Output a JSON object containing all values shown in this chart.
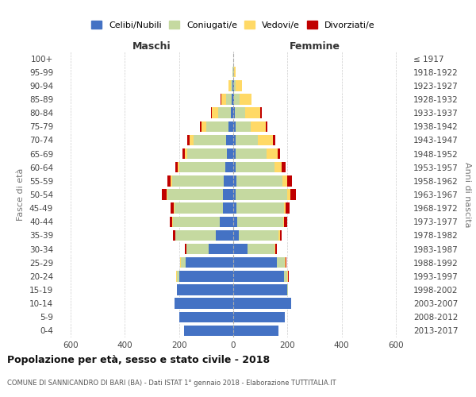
{
  "age_groups": [
    "100+",
    "95-99",
    "90-94",
    "85-89",
    "80-84",
    "75-79",
    "70-74",
    "65-69",
    "60-64",
    "55-59",
    "50-54",
    "45-49",
    "40-44",
    "35-39",
    "30-34",
    "25-29",
    "20-24",
    "15-19",
    "10-14",
    "5-9",
    "0-4"
  ],
  "birth_years": [
    "≤ 1917",
    "1918-1922",
    "1923-1927",
    "1928-1932",
    "1933-1937",
    "1938-1942",
    "1943-1947",
    "1948-1952",
    "1953-1957",
    "1958-1962",
    "1963-1967",
    "1968-1972",
    "1973-1977",
    "1978-1982",
    "1983-1987",
    "1988-1992",
    "1993-1997",
    "1998-2002",
    "2003-2007",
    "2008-2012",
    "2013-2017"
  ],
  "colors": {
    "celibe": "#4472C4",
    "coniugato": "#C5D9A0",
    "vedovo": "#FFD966",
    "divorziato": "#C00000"
  },
  "maschi": {
    "celibe": [
      1,
      1,
      2,
      5,
      8,
      18,
      25,
      22,
      28,
      35,
      38,
      38,
      50,
      65,
      92,
      175,
      198,
      208,
      218,
      198,
      182
    ],
    "coniugato": [
      0,
      2,
      8,
      22,
      48,
      82,
      122,
      148,
      170,
      190,
      205,
      180,
      172,
      148,
      80,
      18,
      10,
      0,
      0,
      0,
      0
    ],
    "vedovo": [
      0,
      1,
      8,
      18,
      22,
      18,
      15,
      8,
      6,
      5,
      4,
      2,
      2,
      2,
      2,
      2,
      2,
      0,
      0,
      0,
      0
    ],
    "divorziato": [
      0,
      0,
      0,
      2,
      4,
      6,
      8,
      10,
      10,
      12,
      16,
      12,
      10,
      8,
      4,
      2,
      2,
      0,
      0,
      0,
      0
    ]
  },
  "femmine": {
    "nubile": [
      1,
      1,
      2,
      4,
      5,
      8,
      10,
      10,
      10,
      12,
      10,
      12,
      16,
      20,
      52,
      162,
      188,
      200,
      215,
      190,
      168
    ],
    "coniugata": [
      0,
      2,
      8,
      20,
      38,
      55,
      82,
      112,
      142,
      170,
      188,
      175,
      168,
      148,
      100,
      28,
      12,
      2,
      0,
      0,
      0
    ],
    "vedova": [
      0,
      5,
      22,
      42,
      58,
      58,
      55,
      42,
      28,
      18,
      12,
      5,
      4,
      4,
      4,
      4,
      2,
      0,
      0,
      0,
      0
    ],
    "divorziata": [
      0,
      0,
      0,
      2,
      4,
      6,
      8,
      10,
      14,
      18,
      22,
      16,
      10,
      8,
      4,
      2,
      2,
      0,
      0,
      0,
      0
    ]
  },
  "xlim": 650,
  "title": "Popolazione per età, sesso e stato civile - 2018",
  "subtitle": "COMUNE DI SANNICANDRO DI BARI (BA) - Dati ISTAT 1° gennaio 2018 - Elaborazione TUTTITALIA.IT",
  "xlabel_left": "Maschi",
  "xlabel_right": "Femmine",
  "ylabel_left": "Fasce di età",
  "ylabel_right": "Anni di nascita",
  "bg_color": "#FFFFFF",
  "grid_color": "#CCCCCC",
  "bar_height": 0.78
}
